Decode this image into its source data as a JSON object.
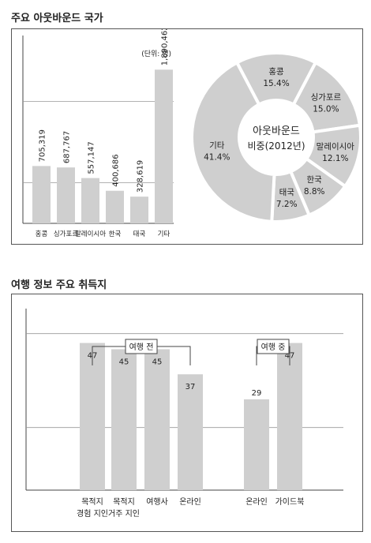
{
  "section1": {
    "title": "주요 아웃바운드 국가"
  },
  "section2": {
    "title": "여행 정보 주요 취득지"
  },
  "chart_data": [
    {
      "type": "bar",
      "unit_note": "(단위: 명)",
      "categories": [
        "홍콩",
        "싱가포르",
        "말레이시아",
        "한국",
        "태국",
        "기타"
      ],
      "values": [
        705319,
        687767,
        557147,
        400686,
        328619,
        1890462
      ],
      "value_labels": [
        "705,319",
        "687,767",
        "557,147",
        "400,686",
        "328,619",
        "1,890,462"
      ],
      "ylim": [
        0,
        2000000
      ]
    },
    {
      "type": "pie",
      "center_label": [
        "아웃바운드",
        "비중(2012년)"
      ],
      "slices": [
        {
          "name": "홍콩",
          "value": 15.4,
          "label": "15.4%"
        },
        {
          "name": "싱가포르",
          "value": 15.0,
          "label": "15.0%"
        },
        {
          "name": "말레이시아",
          "value": 12.1,
          "label": "12.1%"
        },
        {
          "name": "한국",
          "value": 8.8,
          "label": "8.8%"
        },
        {
          "name": "태국",
          "value": 7.2,
          "label": "7.2%"
        },
        {
          "name": "기타",
          "value": 41.4,
          "label": "41.4%"
        }
      ],
      "colors": {
        "slice": "#cfcfcf",
        "separator": "#ffffff"
      }
    },
    {
      "type": "bar",
      "groups": [
        {
          "label": "여행 전",
          "start": 0,
          "end": 3
        },
        {
          "label": "여행 중",
          "start": 4,
          "end": 5
        }
      ],
      "categories": [
        [
          "목적지",
          "경험 지인"
        ],
        [
          "목적지",
          "거주 지인"
        ],
        [
          "여행사"
        ],
        [
          "온라인"
        ],
        [
          "온라인"
        ],
        [
          "가이드북"
        ]
      ],
      "values": [
        47,
        45,
        45,
        37,
        29,
        47
      ],
      "ylim": [
        0,
        60
      ]
    }
  ],
  "colors": {
    "bar": "#cfcfcf",
    "grid": "#999999",
    "axis": "#444444",
    "text": "#222222"
  }
}
